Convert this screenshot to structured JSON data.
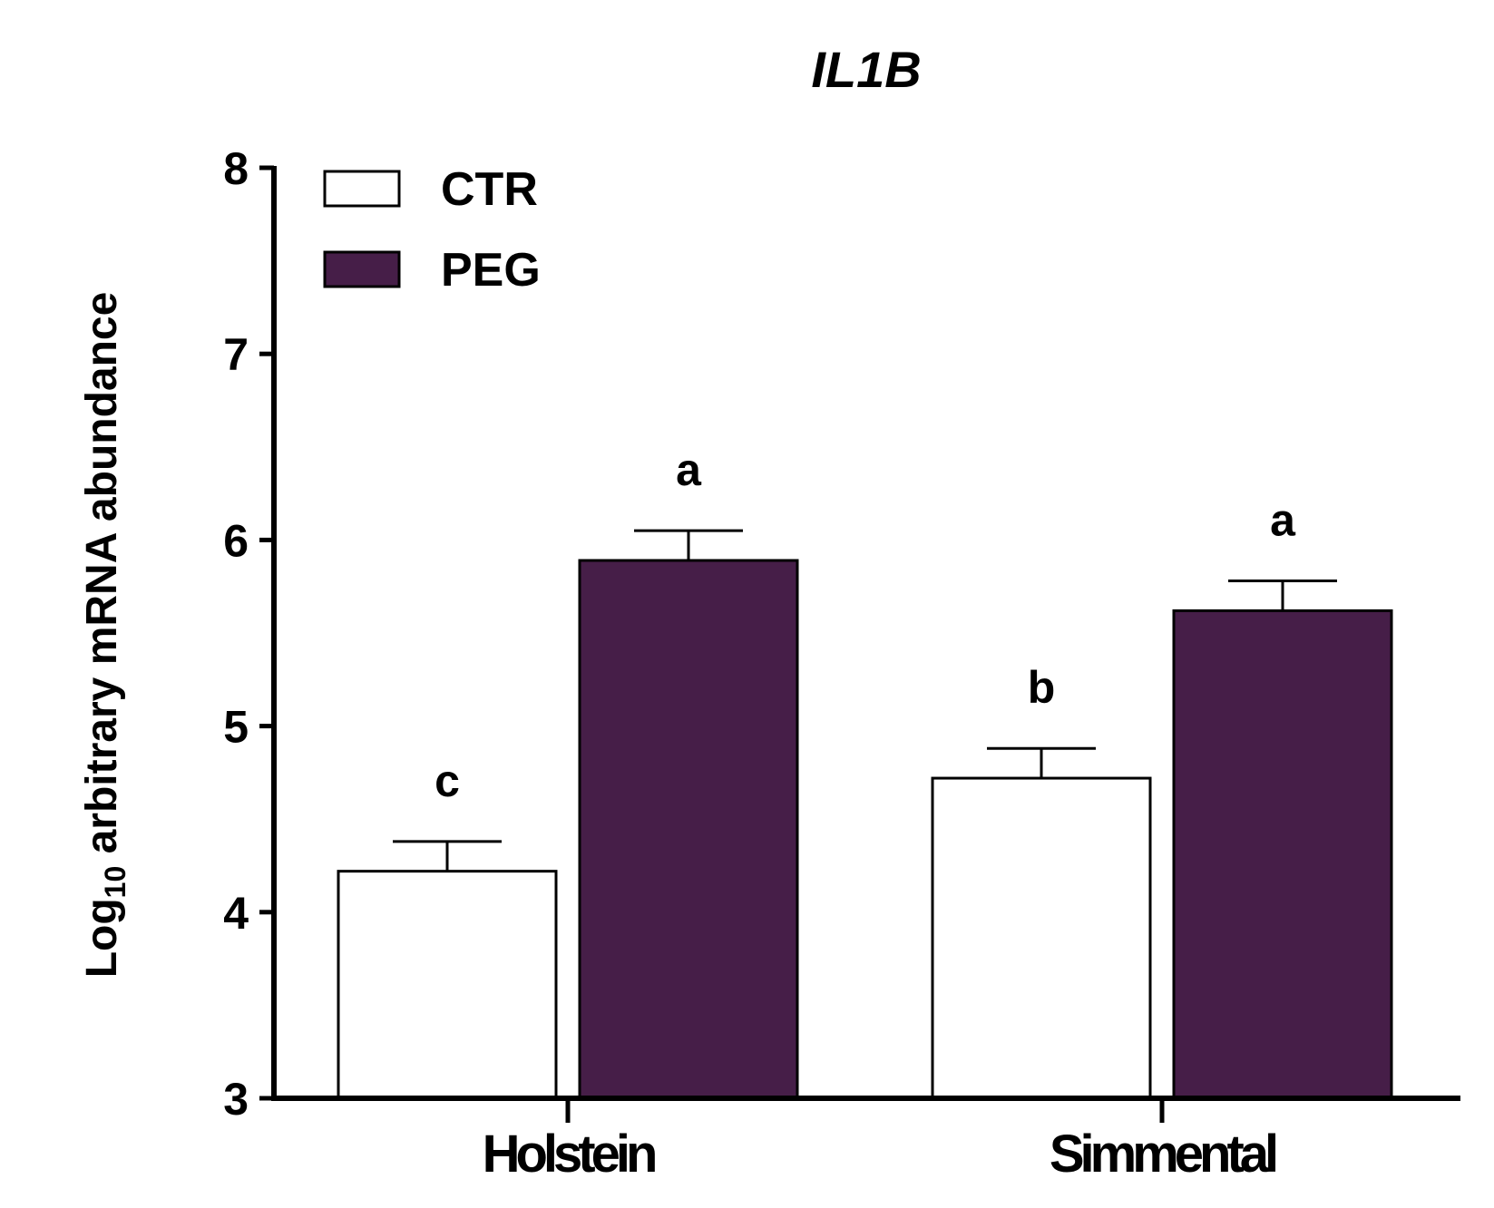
{
  "chart_data": {
    "type": "bar",
    "title": "IL1B",
    "ylabel": {
      "prefix": "Log",
      "subscript": "10",
      "suffix": " arbitrary mRNA abundance"
    },
    "xlabel": "",
    "ylim": [
      3,
      8
    ],
    "yticks": [
      "3",
      "4",
      "5",
      "6",
      "7",
      "8"
    ],
    "categories": [
      "Holstein",
      "Simmental"
    ],
    "series": [
      {
        "name": "CTR",
        "color": "#ffffff",
        "values": [
          4.22,
          4.72
        ],
        "errors": [
          0.16,
          0.16
        ],
        "letters": [
          "c",
          "b"
        ]
      },
      {
        "name": "PEG",
        "color": "#461e48",
        "values": [
          5.89,
          5.62
        ],
        "errors": [
          0.16,
          0.16
        ],
        "letters": [
          "a",
          "a"
        ]
      }
    ],
    "legend_position": "top-left",
    "grid": false
  }
}
